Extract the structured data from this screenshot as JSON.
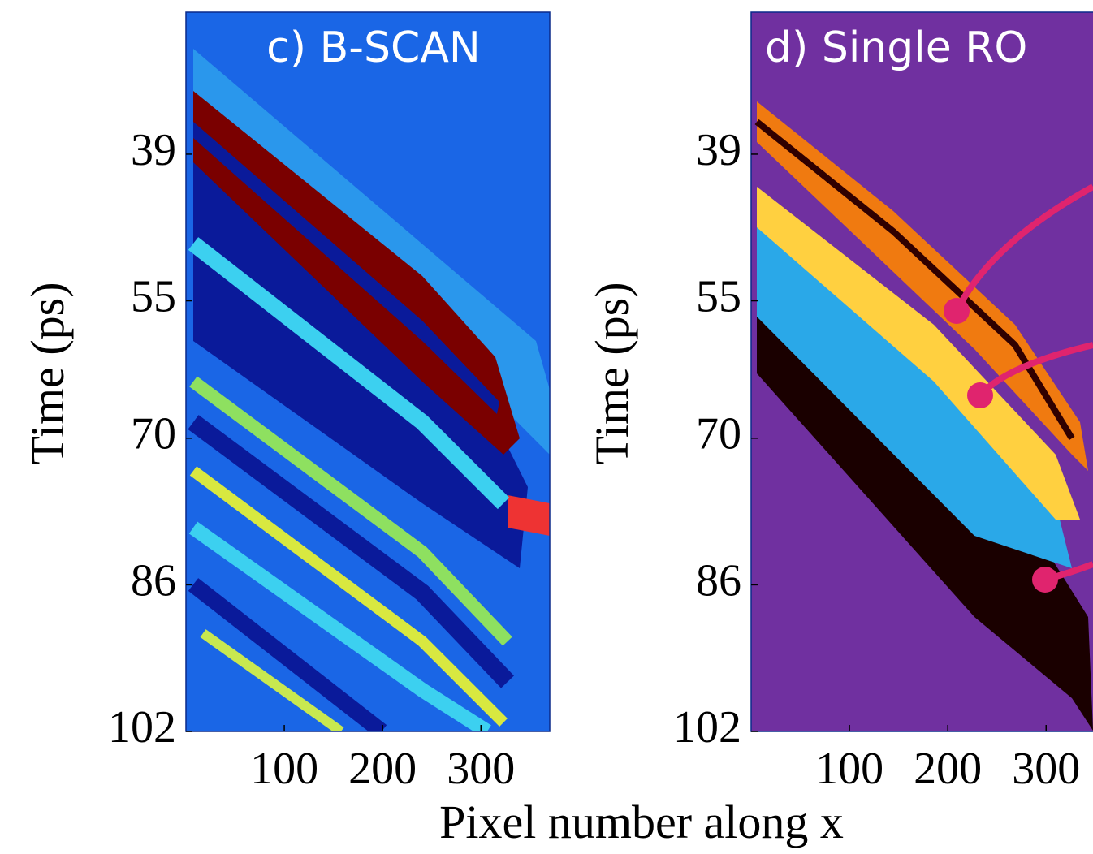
{
  "chart_data": [
    {
      "type": "heatmap",
      "title": "c) B-SCAN",
      "ylabel": "Time (ps)",
      "xlim": [
        0,
        370
      ],
      "xticks": [
        100,
        200,
        300
      ],
      "ylim": [
        23.5,
        102
      ],
      "yticks": [
        39,
        55,
        70,
        86,
        102
      ],
      "y_inverted": true
    },
    {
      "type": "heatmap",
      "title": "d) Single RO",
      "ylabel": "Time (ps)",
      "xlim": [
        0,
        370
      ],
      "xticks": [
        100,
        200,
        300
      ],
      "ylim": [
        23.5,
        102
      ],
      "yticks": [
        39,
        55,
        70,
        86,
        102
      ],
      "y_inverted": true
    }
  ],
  "xlabel": "Pixel number along x"
}
